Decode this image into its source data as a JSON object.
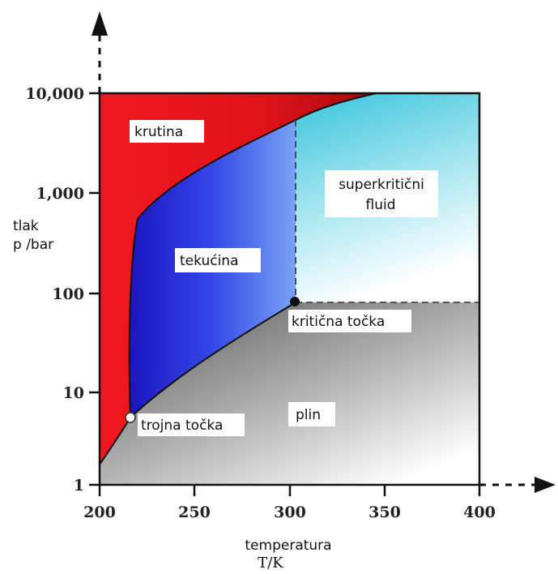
{
  "diagram": {
    "regions": {
      "solid": "krutina",
      "liquid": "tekućina",
      "supercritical_line1": "superkritični",
      "supercritical_line2": "fluid",
      "gas": "plin"
    },
    "points": {
      "critical": "kritična točka",
      "triple": "trojna točka"
    },
    "axes": {
      "x_title": "temperatura",
      "x_unit": "T/K",
      "y_title": "tlak",
      "y_unit": "p /bar",
      "x_ticks": [
        "200",
        "250",
        "300",
        "350",
        "400"
      ],
      "y_ticks": [
        "10,000",
        "1,000",
        "100",
        "10",
        "1"
      ]
    },
    "colors": {
      "solid": "#e8141c",
      "liquid": "#2a2ad8",
      "supercritical": "#4ccfe0",
      "gas": "#8c8c8c"
    }
  }
}
